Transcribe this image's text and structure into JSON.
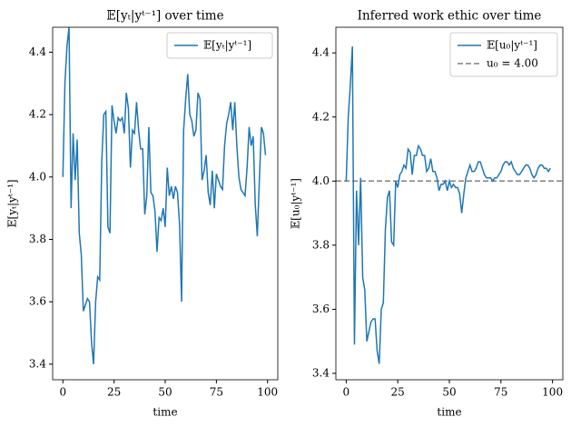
{
  "chart_data": [
    {
      "type": "line",
      "title": "𝔼[yₜ|yᵗ⁻¹] over time",
      "xlabel": "time",
      "ylabel": "𝔼[yₜ|yᵗ⁻¹]",
      "legend": "upper right",
      "xlim": [
        -5,
        105
      ],
      "ylim": [
        3.35,
        4.48
      ],
      "xticks": [
        0,
        25,
        50,
        75,
        100
      ],
      "yticks": [
        3.4,
        3.6,
        3.8,
        {
          "value": 4,
          "label": "4.0"
        },
        4.2,
        4.4
      ],
      "x": [
        0,
        1,
        2,
        3,
        4,
        5,
        6,
        7,
        8,
        9,
        10,
        11,
        12,
        13,
        14,
        15,
        16,
        17,
        18,
        19,
        20,
        21,
        22,
        23,
        24,
        25,
        26,
        27,
        28,
        29,
        30,
        31,
        32,
        33,
        34,
        35,
        36,
        37,
        38,
        39,
        40,
        41,
        42,
        43,
        44,
        45,
        46,
        47,
        48,
        49,
        50,
        51,
        52,
        53,
        54,
        55,
        56,
        57,
        58,
        59,
        60,
        61,
        62,
        63,
        64,
        65,
        66,
        67,
        68,
        69,
        70,
        71,
        72,
        73,
        74,
        75,
        76,
        77,
        78,
        79,
        80,
        81,
        82,
        83,
        84,
        85,
        86,
        87,
        88,
        89,
        90,
        91,
        92,
        93,
        94,
        95,
        96,
        97,
        98,
        99
      ],
      "series": [
        {
          "name": "𝔼[yₜ|yᵗ⁻¹]",
          "color": "#1f77b4",
          "values": [
            4.0,
            4.3,
            4.42,
            4.48,
            3.9,
            4.14,
            3.99,
            4.12,
            3.82,
            3.75,
            3.57,
            3.59,
            3.61,
            3.6,
            3.47,
            3.4,
            3.6,
            3.68,
            3.67,
            4.05,
            4.2,
            4.21,
            3.84,
            3.82,
            4.23,
            4.18,
            4.14,
            4.19,
            4.18,
            4.19,
            4.14,
            4.27,
            4.22,
            4.03,
            4.15,
            4.14,
            4.24,
            4.15,
            4.09,
            4.09,
            3.88,
            3.94,
            4.16,
            3.95,
            3.94,
            3.89,
            3.76,
            3.87,
            3.86,
            3.9,
            3.84,
            4.03,
            3.94,
            3.97,
            3.93,
            3.97,
            3.95,
            3.85,
            3.6,
            4.15,
            4.25,
            4.33,
            4.2,
            4.18,
            4.13,
            4.15,
            4.27,
            4.25,
            3.99,
            4.02,
            4.07,
            3.95,
            3.91,
            4.02,
            3.9,
            4.01,
            3.99,
            3.97,
            3.96,
            4.1,
            4.17,
            4.2,
            4.24,
            4.15,
            4.24,
            4.1,
            4.0,
            3.96,
            3.95,
            3.94,
            4.03,
            4.16,
            4.1,
            4.13,
            3.91,
            3.81,
            3.99,
            4.16,
            4.14,
            4.07
          ]
        }
      ]
    },
    {
      "type": "line",
      "title": "Inferred work ethic over time",
      "xlabel": "time",
      "ylabel": "𝔼[u₀|yᵗ⁻¹]",
      "legend": "upper right",
      "xlim": [
        -5,
        105
      ],
      "ylim": [
        3.38,
        4.48
      ],
      "xticks": [
        0,
        25,
        50,
        75,
        100
      ],
      "yticks": [
        3.4,
        3.6,
        3.8,
        {
          "value": 4,
          "label": "4.0"
        },
        4.2,
        4.4
      ],
      "x": [
        0,
        1,
        2,
        3,
        4,
        5,
        6,
        7,
        8,
        9,
        10,
        11,
        12,
        13,
        14,
        15,
        16,
        17,
        18,
        19,
        20,
        21,
        22,
        23,
        24,
        25,
        26,
        27,
        28,
        29,
        30,
        31,
        32,
        33,
        34,
        35,
        36,
        37,
        38,
        39,
        40,
        41,
        42,
        43,
        44,
        45,
        46,
        47,
        48,
        49,
        50,
        51,
        52,
        53,
        54,
        55,
        56,
        57,
        58,
        59,
        60,
        61,
        62,
        63,
        64,
        65,
        66,
        67,
        68,
        69,
        70,
        71,
        72,
        73,
        74,
        75,
        76,
        77,
        78,
        79,
        80,
        81,
        82,
        83,
        84,
        85,
        86,
        87,
        88,
        89,
        90,
        91,
        92,
        93,
        94,
        95,
        96,
        97,
        98,
        99
      ],
      "series": [
        {
          "name": "𝔼[u₀|yᵗ⁻¹]",
          "color": "#1f77b4",
          "values": [
            4.0,
            4.2,
            4.3,
            4.42,
            3.49,
            3.97,
            3.8,
            4.01,
            3.7,
            3.66,
            3.5,
            3.53,
            3.56,
            3.57,
            3.57,
            3.47,
            3.43,
            3.6,
            3.62,
            3.85,
            3.95,
            3.97,
            3.81,
            3.8,
            4.0,
            3.98,
            4.02,
            4.03,
            4.05,
            4.04,
            4.1,
            4.09,
            4.02,
            4.08,
            4.08,
            4.11,
            4.1,
            4.08,
            4.08,
            4.03,
            4.04,
            4.07,
            4.03,
            4.03,
            4.01,
            3.97,
            3.99,
            3.99,
            4.0,
            3.97,
            4.0,
            3.98,
            3.99,
            3.98,
            3.98,
            3.96,
            3.9,
            3.96,
            4.01,
            4.03,
            4.05,
            4.03,
            4.03,
            4.04,
            4.06,
            4.06,
            4.04,
            4.02,
            4.01,
            4.01,
            4.01,
            4.0,
            4.01,
            4.01,
            4.02,
            4.03,
            4.05,
            4.06,
            4.06,
            4.05,
            4.06,
            4.04,
            4.03,
            4.02,
            4.02,
            4.03,
            4.04,
            4.05,
            4.05,
            4.04,
            4.02,
            4.01,
            4.02,
            4.04,
            4.05,
            4.05,
            4.04,
            4.04,
            4.03,
            4.04
          ]
        }
      ],
      "hline": {
        "value": 4.0,
        "label": "u₀ = 4.00",
        "color": "#808080"
      }
    }
  ]
}
